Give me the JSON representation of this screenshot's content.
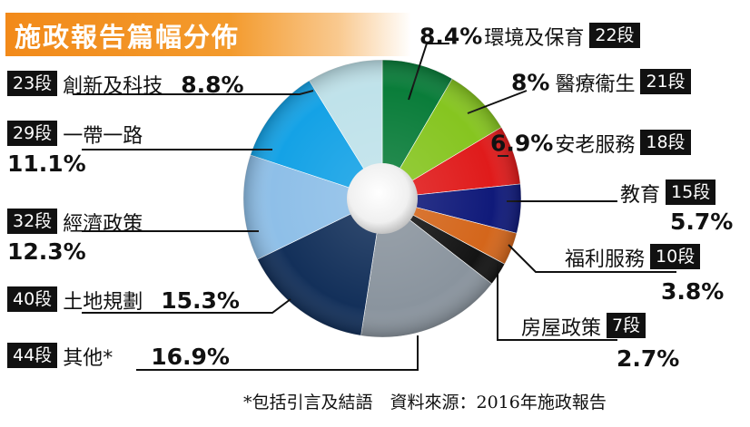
{
  "title": "施政報告篇幅分佈",
  "footnote": "*包括引言及結語　資料來源：2016年施政報告",
  "chart_data": {
    "type": "pie",
    "title": "施政報告篇幅分佈",
    "unit": "段",
    "slices": [
      {
        "label": "環境及保育",
        "value": 8.4,
        "display": "8.4%",
        "count": "22段",
        "color": "#0a7d3a"
      },
      {
        "label": "醫療衞生",
        "value": 8.0,
        "display": "8%",
        "count": "21段",
        "color": "#86c520"
      },
      {
        "label": "安老服務",
        "value": 6.9,
        "display": "6.9%",
        "count": "18段",
        "color": "#e01b1b"
      },
      {
        "label": "教育",
        "value": 5.7,
        "display": "5.7%",
        "count": "15段",
        "color": "#101a7a"
      },
      {
        "label": "福利服務",
        "value": 3.8,
        "display": "3.8%",
        "count": "10段",
        "color": "#d4661b"
      },
      {
        "label": "房屋政策",
        "value": 2.7,
        "display": "2.7%",
        "count": "7段",
        "color": "#141414"
      },
      {
        "label": "其他*",
        "value": 16.9,
        "display": "16.9%",
        "count": "44段",
        "color": "#8a949e"
      },
      {
        "label": "土地規劃",
        "value": 15.3,
        "display": "15.3%",
        "count": "40段",
        "color": "#13305a"
      },
      {
        "label": "經濟政策",
        "value": 12.3,
        "display": "12.3%",
        "count": "32段",
        "color": "#8ebfe8"
      },
      {
        "label": "一帶一路",
        "value": 11.1,
        "display": "11.1%",
        "count": "29段",
        "color": "#14a2e6"
      },
      {
        "label": "創新及科技",
        "value": 8.8,
        "display": "8.8%",
        "count": "23段",
        "color": "#bfe2ea"
      }
    ]
  }
}
